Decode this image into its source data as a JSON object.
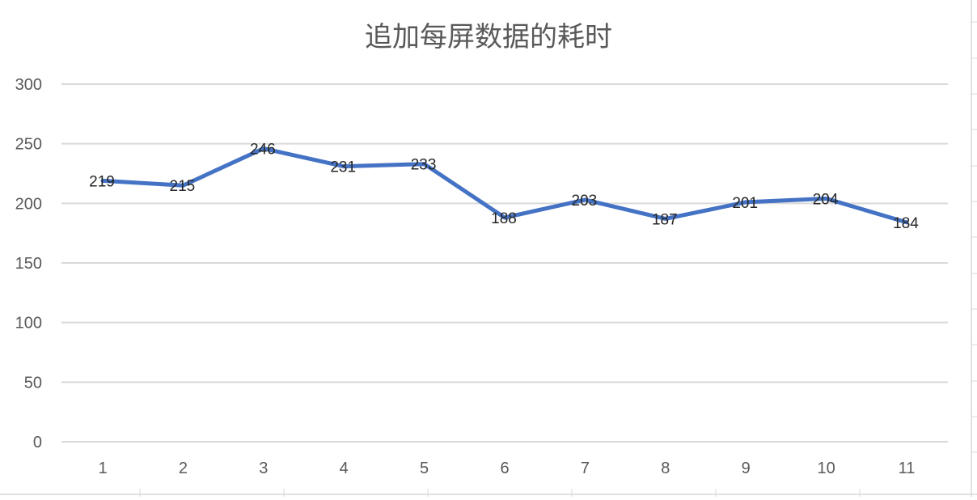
{
  "chart_data": {
    "type": "line",
    "title": "追加每屏数据的耗时",
    "xlabel": "",
    "ylabel": "",
    "categories": [
      "1",
      "2",
      "3",
      "4",
      "5",
      "6",
      "7",
      "8",
      "9",
      "10",
      "11"
    ],
    "series": [
      {
        "values": [
          219,
          215,
          246,
          231,
          233,
          188,
          203,
          187,
          201,
          204,
          184
        ],
        "color": "#4472c4"
      }
    ],
    "data_labels": [
      "219",
      "215",
      "246",
      "231",
      "233",
      "188",
      "203",
      "187",
      "201",
      "204",
      "184"
    ],
    "ylim": [
      0,
      300
    ],
    "y_ticks": [
      0,
      50,
      100,
      150,
      200,
      250,
      300
    ],
    "y_tick_labels": [
      "0",
      "50",
      "100",
      "150",
      "200",
      "250",
      "300"
    ],
    "grid": true,
    "legend": "none"
  },
  "colors": {
    "series": "#4472c4",
    "gridline": "#d9d9d9",
    "text": "#595959",
    "data_label": "#262626"
  }
}
